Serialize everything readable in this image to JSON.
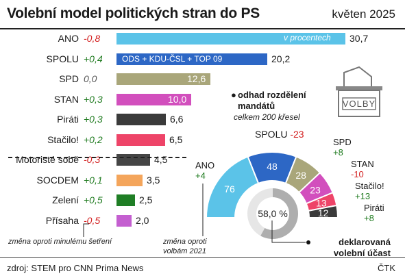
{
  "header": {
    "title": "Volební model politických stran do PS",
    "date": "květen 2025"
  },
  "chart_data": [
    {
      "type": "bar",
      "orientation": "horizontal",
      "value_unit_label": "v procentech",
      "categories": [
        "ANO",
        "SPOLU",
        "SPD",
        "STAN",
        "Piráti",
        "Stačilo!",
        "Motoristé sobě",
        "SOCDEM",
        "Zelení",
        "Přísaha"
      ],
      "values": [
        30.7,
        20.2,
        12.6,
        10.0,
        6.6,
        6.5,
        4.5,
        3.5,
        2.5,
        2.0
      ],
      "value_labels": [
        "30,7",
        "20,2",
        "12,6",
        "10,0",
        "6,6",
        "6,5",
        "4,5",
        "3,5",
        "2,5",
        "2,0"
      ],
      "changes": [
        "-0,8",
        "+0,4",
        "0,0",
        "+0,3",
        "+0,3",
        "+0,2",
        "-0,3",
        "+0,1",
        "+0,5",
        "-0,5"
      ],
      "colors": [
        "#5bc3e8",
        "#2d67c5",
        "#a9a67a",
        "#d24fbd",
        "#3b3b3b",
        "#ee4468",
        "#454545",
        "#f4a55b",
        "#1f7e25",
        "#c45fd0"
      ],
      "spolu_composition": "ODS + KDU-ČSL + TOP 09",
      "change_note": "změna oproti minulému šetření"
    },
    {
      "type": "pie",
      "subtype": "semicircle",
      "title": "odhad rozdělení mandátů",
      "subtitle": "celkem 200 křesel",
      "labels": [
        "ANO",
        "SPOLU",
        "SPD",
        "STAN",
        "Stačilo!",
        "Piráti"
      ],
      "values": [
        76,
        48,
        28,
        23,
        13,
        12
      ],
      "changes": [
        "+4",
        "-23",
        "+8",
        "-10",
        "+13",
        "+8"
      ],
      "colors": [
        "#5bc3e8",
        "#2d67c5",
        "#a9a67a",
        "#d24fbd",
        "#ee4468",
        "#3b3b3b"
      ],
      "change_note": "změna oproti volbám 2021"
    },
    {
      "type": "pie",
      "subtype": "donut",
      "title": "deklarovaná volební účast",
      "value": 58.0,
      "value_label": "58,0 %",
      "colors": [
        "#aeaeae",
        "#e6e6e6"
      ]
    }
  ],
  "ballot_box": {
    "label": "VOLBY"
  },
  "footer": {
    "source": "zdroj: STEM pro CNN Prima News",
    "agency": "ČTK"
  }
}
